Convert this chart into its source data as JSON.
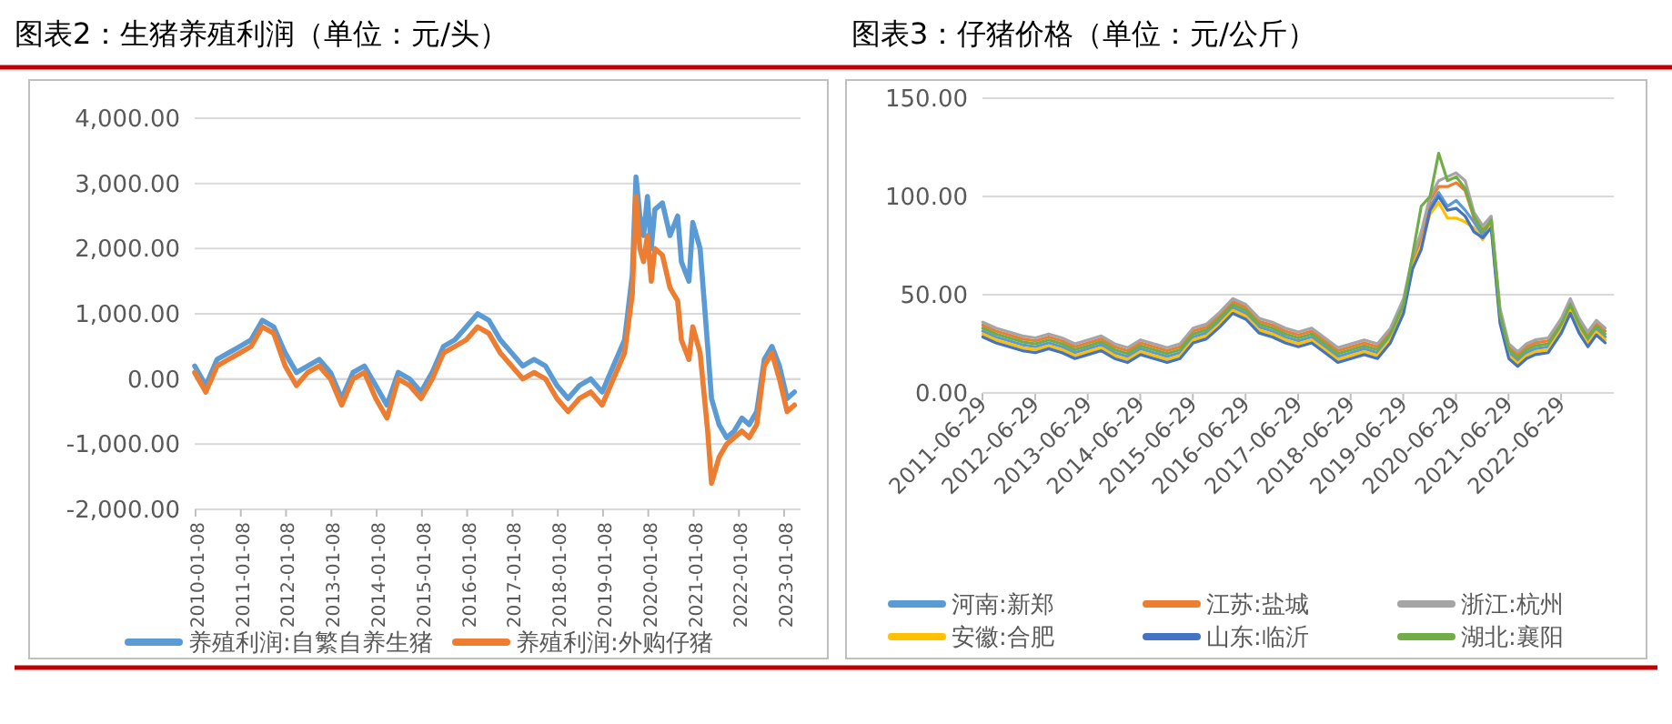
{
  "chart_data": [
    {
      "type": "line",
      "title": "图表2：生猪养殖利润（单位：元/头）",
      "ylim": [
        -2000,
        4000
      ],
      "yticks": [
        {
          "value": -2000,
          "label": "-2,000.00"
        },
        {
          "value": -1000,
          "label": "-1,000.00"
        },
        {
          "value": 0,
          "label": "0.00"
        },
        {
          "value": 1000,
          "label": "1,000.00"
        },
        {
          "value": 2000,
          "label": "2,000.00"
        },
        {
          "value": 3000,
          "label": "3,000.00"
        },
        {
          "value": 4000,
          "label": "4,000.00"
        }
      ],
      "xlim": [
        "2010-01-01",
        "2023-05-20"
      ],
      "xticks": [
        "2010-01-08",
        "2011-01-08",
        "2012-01-08",
        "2013-01-08",
        "2014-01-08",
        "2015-01-08",
        "2016-01-08",
        "2017-01-08",
        "2018-01-08",
        "2019-01-08",
        "2020-01-08",
        "2021-01-08",
        "2022-01-08",
        "2023-01-08"
      ],
      "grid": "y",
      "legend": "bottom",
      "line_style": "solid",
      "x": [
        "2010-01",
        "2010-04",
        "2010-07",
        "2010-10",
        "2011-01",
        "2011-04",
        "2011-07",
        "2011-10",
        "2012-01",
        "2012-04",
        "2012-07",
        "2012-10",
        "2013-01",
        "2013-04",
        "2013-07",
        "2013-10",
        "2014-01",
        "2014-04",
        "2014-07",
        "2014-10",
        "2015-01",
        "2015-04",
        "2015-07",
        "2015-10",
        "2016-01",
        "2016-04",
        "2016-07",
        "2016-10",
        "2017-01",
        "2017-04",
        "2017-07",
        "2017-10",
        "2018-01",
        "2018-04",
        "2018-07",
        "2018-10",
        "2019-01",
        "2019-04",
        "2019-07",
        "2019-09",
        "2019-10",
        "2019-11",
        "2019-12",
        "2020-01",
        "2020-02",
        "2020-03",
        "2020-05",
        "2020-07",
        "2020-09",
        "2020-10",
        "2020-12",
        "2021-01",
        "2021-03",
        "2021-05",
        "2021-06",
        "2021-08",
        "2021-10",
        "2021-12",
        "2022-02",
        "2022-04",
        "2022-06",
        "2022-08",
        "2022-10",
        "2022-12",
        "2023-02",
        "2023-04"
      ],
      "series": [
        {
          "name": "养殖利润:自繁自养生猪",
          "color": "#5b9bd5",
          "values": [
            200,
            -100,
            300,
            400,
            500,
            600,
            900,
            800,
            400,
            100,
            200,
            300,
            100,
            -300,
            100,
            200,
            -100,
            -400,
            100,
            0,
            -200,
            100,
            500,
            600,
            800,
            1000,
            900,
            600,
            400,
            200,
            300,
            200,
            -100,
            -300,
            -100,
            0,
            -200,
            200,
            600,
            1600,
            3100,
            2500,
            2200,
            2800,
            2000,
            2600,
            2700,
            2200,
            2500,
            1800,
            1500,
            2400,
            2000,
            500,
            -300,
            -700,
            -900,
            -800,
            -600,
            -700,
            -500,
            300,
            500,
            200,
            -300,
            -200
          ]
        },
        {
          "name": "养殖利润:外购仔猪",
          "color": "#ed7d31",
          "values": [
            100,
            -200,
            200,
            300,
            400,
            500,
            800,
            700,
            200,
            -100,
            100,
            200,
            0,
            -400,
            0,
            100,
            -300,
            -600,
            0,
            -100,
            -300,
            0,
            400,
            500,
            600,
            800,
            700,
            400,
            200,
            0,
            100,
            0,
            -300,
            -500,
            -300,
            -200,
            -400,
            0,
            400,
            1300,
            2800,
            2000,
            1800,
            2200,
            1500,
            2000,
            1900,
            1400,
            1200,
            600,
            300,
            800,
            400,
            -800,
            -1600,
            -1200,
            -1000,
            -900,
            -800,
            -900,
            -700,
            200,
            400,
            0,
            -500,
            -400
          ]
        }
      ]
    },
    {
      "type": "line",
      "title": "图表3：仔猪价格（单位：元/公斤）",
      "ylim": [
        0,
        150
      ],
      "yticks": [
        {
          "value": 0,
          "label": "0.00"
        },
        {
          "value": 50,
          "label": "50.00"
        },
        {
          "value": 100,
          "label": "100.00"
        },
        {
          "value": 150,
          "label": "150.00"
        }
      ],
      "xlim": [
        "2011-06-29",
        "2023-06-30"
      ],
      "xticks": [
        "2011-06-29",
        "2012-06-29",
        "2013-06-29",
        "2014-06-29",
        "2015-06-29",
        "2016-06-29",
        "2017-06-29",
        "2018-06-29",
        "2019-06-29",
        "2020-06-29",
        "2021-06-29",
        "2022-06-29"
      ],
      "grid": "y",
      "legend": "bottom",
      "line_style": "solid",
      "x": [
        "2011-07",
        "2011-10",
        "2012-01",
        "2012-04",
        "2012-07",
        "2012-10",
        "2013-01",
        "2013-04",
        "2013-07",
        "2013-10",
        "2014-01",
        "2014-04",
        "2014-07",
        "2014-10",
        "2015-01",
        "2015-04",
        "2015-07",
        "2015-10",
        "2016-01",
        "2016-04",
        "2016-07",
        "2016-10",
        "2017-01",
        "2017-04",
        "2017-07",
        "2017-10",
        "2018-01",
        "2018-04",
        "2018-07",
        "2018-10",
        "2019-01",
        "2019-04",
        "2019-07",
        "2019-09",
        "2019-11",
        "2020-01",
        "2020-03",
        "2020-05",
        "2020-07",
        "2020-09",
        "2020-11",
        "2021-01",
        "2021-03",
        "2021-05",
        "2021-07",
        "2021-09",
        "2021-11",
        "2022-01",
        "2022-04",
        "2022-07",
        "2022-09",
        "2022-11",
        "2023-01",
        "2023-03",
        "2023-05"
      ],
      "series": [
        {
          "name": "河南:新郑",
          "color": "#5b9bd5",
          "values": [
            31.5,
            28.5,
            26.5,
            24.5,
            23.5,
            25.5,
            23.5,
            20.5,
            22.5,
            24.5,
            20.5,
            18.5,
            22.5,
            20.5,
            18.5,
            20.5,
            28.5,
            30.5,
            36.5,
            43.5,
            40.5,
            33.5,
            31.5,
            28.5,
            26.5,
            28.5,
            23.5,
            18.5,
            20.5,
            22.5,
            20.5,
            28.5,
            43.5,
            66,
            77,
            95,
            102,
            95,
            98,
            93,
            87,
            80,
            86,
            38.5,
            20.5,
            16.5,
            20.5,
            22.5,
            23.5,
            33.5,
            43.5,
            33.5,
            26.5,
            32.5,
            28.5
          ]
        },
        {
          "name": "江苏:盐城",
          "color": "#ed7d31",
          "values": [
            34.5,
            31.5,
            29.5,
            27.5,
            26.5,
            28.5,
            26.5,
            23.5,
            25.5,
            27.5,
            23.5,
            21.5,
            25.5,
            23.5,
            21.5,
            23.5,
            31.5,
            33.5,
            39.5,
            46.5,
            43.5,
            36.5,
            34.5,
            31.5,
            29.5,
            31.5,
            26.5,
            21.5,
            23.5,
            25.5,
            23.5,
            31.5,
            46.5,
            67,
            80,
            98,
            105,
            105,
            107,
            103,
            89,
            83,
            87,
            41.5,
            23.5,
            19.5,
            23.5,
            25.5,
            26.5,
            36.5,
            46.5,
            36.5,
            29.5,
            35.5,
            31.5
          ]
        },
        {
          "name": "浙江:杭州",
          "color": "#a5a5a5",
          "values": [
            36,
            33,
            31,
            29,
            28,
            30,
            28,
            25,
            27,
            29,
            25,
            23,
            27,
            25,
            23,
            25,
            33,
            35,
            41,
            48,
            45,
            38,
            36,
            33,
            31,
            33,
            28,
            23,
            25,
            27,
            25,
            33,
            48,
            69,
            82,
            100,
            108,
            110,
            112,
            108,
            92,
            85,
            90,
            43,
            25,
            21,
            25,
            27,
            28,
            38,
            48,
            38,
            31,
            37,
            33
          ]
        },
        {
          "name": "安徽:合肥",
          "color": "#ffc000",
          "values": [
            30,
            27,
            25,
            23,
            22,
            24,
            22,
            19,
            21,
            23,
            19,
            17,
            21,
            19,
            17,
            19,
            27,
            29,
            35,
            42,
            39,
            32,
            30,
            27,
            25,
            27,
            22,
            17,
            19,
            21,
            19,
            27,
            42,
            64,
            75,
            91,
            97,
            89,
            89,
            87,
            84,
            78,
            85,
            37,
            19,
            15,
            19,
            21,
            22,
            32,
            42,
            32,
            25,
            31,
            27
          ]
        },
        {
          "name": "山东:临沂",
          "color": "#4472c4",
          "values": [
            28.5,
            25.5,
            23.5,
            21.5,
            20.5,
            22.5,
            20.5,
            17.5,
            19.5,
            21.5,
            17.5,
            15.5,
            19.5,
            17.5,
            15.5,
            17.5,
            25.5,
            27.5,
            33.5,
            40.5,
            37.5,
            30.5,
            28.5,
            25.5,
            23.5,
            25.5,
            20.5,
            15.5,
            17.5,
            19.5,
            17.5,
            25.5,
            40.5,
            63,
            73,
            93,
            100,
            93,
            94,
            90,
            82,
            79,
            84,
            35.5,
            17.5,
            13.5,
            17.5,
            19.5,
            20.5,
            30.5,
            40.5,
            30.5,
            23.5,
            29.5,
            25.5
          ]
        },
        {
          "name": "湖北:襄阳",
          "color": "#70ad47",
          "values": [
            33,
            30,
            28,
            26,
            25,
            27,
            25,
            22,
            24,
            26,
            22,
            20,
            24,
            22,
            20,
            22,
            30,
            32,
            38,
            45,
            42,
            35,
            33,
            30,
            28,
            30,
            25,
            20,
            22,
            24,
            22,
            30,
            45,
            70,
            95,
            100,
            122,
            108,
            110,
            104,
            90,
            82,
            88,
            40,
            22,
            18,
            22,
            24,
            25,
            35,
            45,
            35,
            28,
            34,
            30
          ]
        }
      ]
    }
  ]
}
